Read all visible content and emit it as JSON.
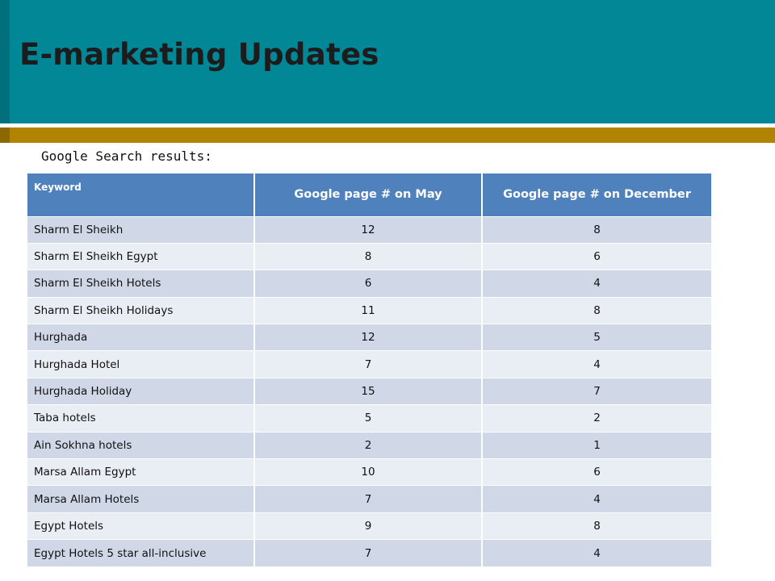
{
  "slide": {
    "title": "E-marketing Updates",
    "subtitle": "Google Search results:"
  },
  "table": {
    "headers": [
      "Keyword",
      "Google page # on May",
      "Google page # on December"
    ],
    "rows": [
      [
        "Sharm El Sheikh",
        "12",
        "8"
      ],
      [
        "Sharm El Sheikh Egypt",
        "8",
        "6"
      ],
      [
        "Sharm El Sheikh Hotels",
        "6",
        "4"
      ],
      [
        "Sharm El Sheikh Holidays",
        "11",
        "8"
      ],
      [
        "Hurghada",
        "12",
        "5"
      ],
      [
        "Hurghada Hotel",
        "7",
        "4"
      ],
      [
        "Hurghada Holiday",
        "15",
        "7"
      ],
      [
        "Taba hotels",
        "5",
        "2"
      ],
      [
        "Ain Sokhna hotels",
        "2",
        "1"
      ],
      [
        "Marsa Allam Egypt",
        "10",
        "6"
      ],
      [
        "Marsa Allam  Hotels",
        "7",
        "4"
      ],
      [
        "Egypt Hotels",
        "9",
        "8"
      ],
      [
        "Egypt Hotels 5 star all-inclusive",
        "7",
        "4"
      ]
    ]
  },
  "colors": {
    "header_band": "#028797",
    "gold_bar": "#b08400",
    "table_header": "#4f81bd",
    "row_odd": "#d0d8e8",
    "row_even": "#e9edf4"
  }
}
